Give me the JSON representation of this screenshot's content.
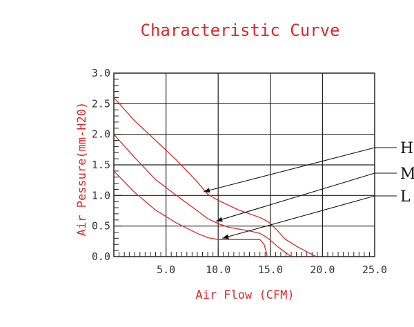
{
  "chart_data": {
    "type": "line",
    "title": "Characteristic Curve",
    "xlabel": "Air Flow (CFM)",
    "ylabel": "Air Pessure(mm-H20)",
    "xlim": [
      0,
      25
    ],
    "ylim": [
      0,
      3.0
    ],
    "x_ticks": [
      {
        "value": 5,
        "label": "5.0"
      },
      {
        "value": 10,
        "label": "10.0"
      },
      {
        "value": 15,
        "label": "15.0"
      },
      {
        "value": 20,
        "label": "20.0"
      },
      {
        "value": 25,
        "label": "25.0"
      }
    ],
    "y_ticks": [
      {
        "value": 0.0,
        "label": "0.0"
      },
      {
        "value": 0.5,
        "label": "0.5"
      },
      {
        "value": 1.0,
        "label": "1.0"
      },
      {
        "value": 1.5,
        "label": "1.5"
      },
      {
        "value": 2.0,
        "label": "2.0"
      },
      {
        "value": 2.5,
        "label": "2.5"
      },
      {
        "value": 3.0,
        "label": "3.0"
      }
    ],
    "grid": true,
    "series": [
      {
        "name": "H",
        "color": "#d42b2b",
        "x": [
          0,
          2,
          4,
          6,
          8,
          9,
          10,
          11,
          12,
          13,
          14,
          14.8,
          15.6,
          16.4,
          17.5,
          18.5,
          19.4
        ],
        "y": [
          2.6,
          2.22,
          1.9,
          1.58,
          1.22,
          1.02,
          0.92,
          0.84,
          0.76,
          0.7,
          0.64,
          0.57,
          0.44,
          0.29,
          0.17,
          0.08,
          0.0
        ]
      },
      {
        "name": "M",
        "color": "#d42b2b",
        "x": [
          0,
          2,
          4,
          6,
          8,
          9,
          10,
          11,
          12,
          13,
          14,
          14.6,
          15.2,
          15.8,
          16.5,
          17.0
        ],
        "y": [
          2.0,
          1.62,
          1.26,
          1.0,
          0.75,
          0.62,
          0.54,
          0.48,
          0.45,
          0.42,
          0.38,
          0.32,
          0.24,
          0.15,
          0.06,
          0.0
        ]
      },
      {
        "name": "L",
        "color": "#d42b2b",
        "x": [
          0,
          2,
          4,
          6,
          8,
          9,
          10,
          11,
          12,
          13,
          14,
          14.4,
          14.6,
          14.7
        ],
        "y": [
          1.4,
          1.05,
          0.76,
          0.55,
          0.38,
          0.31,
          0.28,
          0.28,
          0.28,
          0.28,
          0.28,
          0.2,
          0.08,
          0.0
        ]
      }
    ],
    "annotations": [
      {
        "label": "H",
        "series": "H",
        "point": [
          8.6,
          1.06
        ]
      },
      {
        "label": "M",
        "series": "M",
        "point": [
          9.8,
          0.58
        ]
      },
      {
        "label": "L",
        "series": "L",
        "point": [
          10.4,
          0.3
        ]
      }
    ]
  }
}
